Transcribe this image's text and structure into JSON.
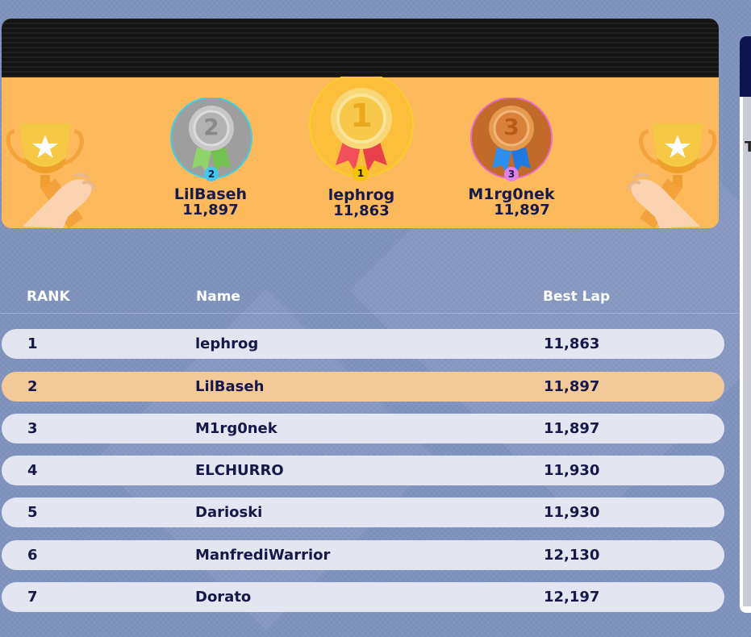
{
  "podium": {
    "first": {
      "rank": "1",
      "name": "lephrog",
      "score": "11,863",
      "badge": "1"
    },
    "second": {
      "rank": "2",
      "name": "LilBaseh",
      "score": "11,897",
      "badge": "2"
    },
    "third": {
      "rank": "3",
      "name": "M1rg0nek",
      "score": "11,897",
      "badge": "3"
    },
    "icons": [
      "trophy-left-icon",
      "trophy-right-icon",
      "gold-medal-icon",
      "silver-medal-icon",
      "bronze-medal-icon"
    ]
  },
  "table": {
    "headers": {
      "rank": "RANK",
      "name": "Name",
      "best_lap": "Best Lap"
    },
    "rows": [
      {
        "rank": "1",
        "name": "lephrog",
        "best_lap": "11,863"
      },
      {
        "rank": "2",
        "name": "LilBaseh",
        "best_lap": "11,897"
      },
      {
        "rank": "3",
        "name": "M1rg0nek",
        "best_lap": "11,897"
      },
      {
        "rank": "4",
        "name": "ELCHURRO",
        "best_lap": "11,930"
      },
      {
        "rank": "5",
        "name": "Darioski",
        "best_lap": "11,930"
      },
      {
        "rank": "6",
        "name": "ManfrediWarrior",
        "best_lap": "12,130"
      },
      {
        "rank": "7",
        "name": "Dorato",
        "best_lap": "12,197"
      }
    ],
    "highlight_color": "#f4c99a",
    "row_color": "#e3e5f0"
  },
  "side_panel": {
    "letter": "T"
  },
  "colors": {
    "background": "#8093bf",
    "podium": "#fdb95c",
    "text": "#17184a",
    "gold": "#f6c945",
    "silver": "#a9a9a9",
    "bronze": "#c9702d"
  }
}
